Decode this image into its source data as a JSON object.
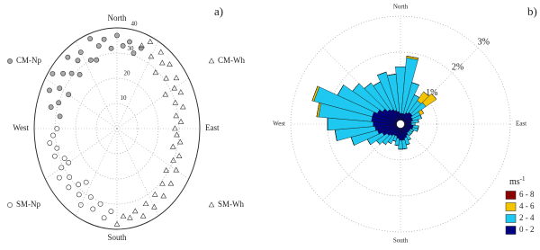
{
  "chart_data": [
    {
      "type": "polar-scatter",
      "panel_label": "a)",
      "directions": [
        "North",
        "East",
        "South",
        "West"
      ],
      "rlim": [
        0,
        40
      ],
      "rticks": [
        10,
        20,
        30,
        40
      ],
      "grid": true,
      "legend": "corners",
      "series": [
        {
          "name": "CM-Np",
          "marker": "circle",
          "color": "#aaaaaa",
          "x": [
            280,
            285,
            290,
            295,
            300,
            305,
            310,
            315,
            320,
            325,
            330,
            335,
            340,
            345,
            350,
            355,
            0,
            5,
            10,
            15,
            20,
            300,
            320,
            340
          ],
          "values": [
            28,
            33,
            30,
            36,
            32,
            38,
            34,
            31,
            37,
            33,
            35,
            30,
            38,
            34,
            36,
            32,
            37,
            33,
            35,
            31,
            34,
            27,
            28,
            29
          ]
        },
        {
          "name": "CM-Wh",
          "marker": "triangle",
          "color": "none",
          "x": [
            20,
            25,
            30,
            35,
            40,
            45,
            50,
            55,
            60,
            65,
            70,
            75,
            80,
            85,
            90,
            40,
            60
          ],
          "values": [
            35,
            38,
            33,
            37,
            34,
            36,
            31,
            35,
            32,
            34,
            30,
            33,
            29,
            31,
            28,
            29,
            27
          ]
        },
        {
          "name": "SM-Np",
          "marker": "circle",
          "color": "none",
          "x": [
            185,
            190,
            195,
            200,
            205,
            210,
            215,
            220,
            225,
            230,
            235,
            240,
            245,
            250,
            255,
            260,
            265,
            270,
            215,
            240
          ],
          "values": [
            33,
            36,
            31,
            34,
            30,
            35,
            32,
            29,
            33,
            30,
            34,
            31,
            28,
            32,
            30,
            33,
            31,
            29,
            26,
            27
          ]
        },
        {
          "name": "SM-Wh",
          "marker": "triangle",
          "color": "none",
          "x": [
            95,
            100,
            105,
            110,
            115,
            120,
            125,
            130,
            135,
            140,
            145,
            150,
            155,
            160,
            165,
            170,
            175,
            180
          ],
          "values": [
            29,
            31,
            28,
            32,
            30,
            33,
            29,
            34,
            31,
            35,
            32,
            36,
            33,
            37,
            34,
            36,
            35,
            38
          ]
        }
      ]
    },
    {
      "type": "wind-rose",
      "panel_label": "b)",
      "directions": [
        "North",
        "East",
        "South",
        "West"
      ],
      "rlim": [
        0,
        3
      ],
      "rticks": [
        {
          "value": 1,
          "label": "1%"
        },
        {
          "value": 2,
          "label": "2%"
        },
        {
          "value": 3,
          "label": "3%"
        }
      ],
      "grid": true,
      "legend_title": {
        "text": "ms",
        "superscript": "-1"
      },
      "x": [
        0,
        10,
        20,
        30,
        40,
        50,
        60,
        70,
        80,
        90,
        100,
        110,
        120,
        130,
        140,
        150,
        160,
        170,
        180,
        190,
        200,
        210,
        220,
        230,
        240,
        250,
        260,
        270,
        280,
        290,
        300,
        310,
        320,
        330,
        340,
        350
      ],
      "series": [
        {
          "name": "0 - 2",
          "color": "#000080",
          "values": [
            0.3,
            0.3,
            0.3,
            0.35,
            0.4,
            0.4,
            0.35,
            0.35,
            0.3,
            0.3,
            0.35,
            0.35,
            0.3,
            0.3,
            0.3,
            0.35,
            0.4,
            0.45,
            0.45,
            0.4,
            0.35,
            0.35,
            0.4,
            0.45,
            0.55,
            0.65,
            0.7,
            0.75,
            0.8,
            0.8,
            0.7,
            0.6,
            0.5,
            0.45,
            0.4,
            0.35
          ]
        },
        {
          "name": "2 - 4",
          "color": "#1ec8f0",
          "values": [
            1.3,
            1.55,
            0.9,
            0.55,
            0.4,
            0.45,
            0.25,
            0.25,
            0.2,
            0.1,
            0.15,
            0.15,
            0.1,
            0.1,
            0.1,
            0.15,
            0.2,
            0.25,
            0.25,
            0.2,
            0.15,
            0.25,
            0.3,
            0.35,
            0.45,
            0.75,
            1.1,
            1.25,
            1.45,
            1.65,
            1.2,
            1.0,
            0.9,
            0.85,
            1.1,
            1.05
          ]
        },
        {
          "name": "4 - 6",
          "color": "#f5c400",
          "values": [
            0,
            0.05,
            0,
            0,
            0.3,
            0.35,
            0.1,
            0,
            0,
            0,
            0,
            0,
            0,
            0,
            0,
            0,
            0,
            0,
            0,
            0,
            0,
            0,
            0,
            0,
            0,
            0,
            0,
            0,
            0.05,
            0.05,
            0,
            0,
            0,
            0,
            0,
            0
          ]
        },
        {
          "name": "6 - 8",
          "color": "#8b0000",
          "values": [
            0,
            0,
            0,
            0,
            0,
            0,
            0,
            0,
            0,
            0,
            0,
            0,
            0,
            0,
            0,
            0,
            0,
            0,
            0,
            0,
            0,
            0,
            0,
            0,
            0,
            0,
            0,
            0,
            0,
            0,
            0,
            0,
            0,
            0,
            0,
            0
          ]
        }
      ]
    }
  ]
}
